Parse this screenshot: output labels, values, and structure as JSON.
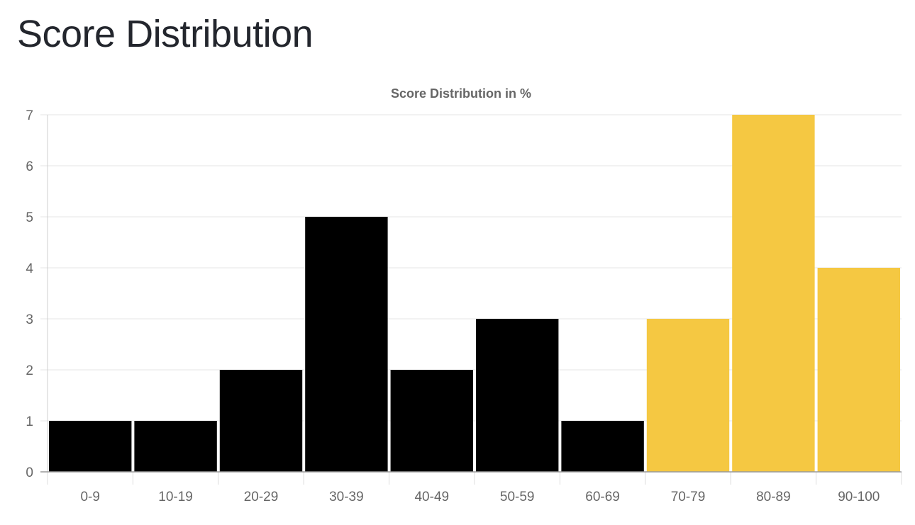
{
  "page": {
    "title": "Score Distribution"
  },
  "chart_data": {
    "type": "bar",
    "title": "Score Distribution in %",
    "xlabel": "",
    "ylabel": "",
    "categories": [
      "0-9",
      "10-19",
      "20-29",
      "30-39",
      "40-49",
      "50-59",
      "60-69",
      "70-79",
      "80-89",
      "90-100"
    ],
    "values": [
      1,
      1,
      2,
      5,
      2,
      3,
      1,
      3,
      7,
      4
    ],
    "bar_colors": [
      "#000000",
      "#000000",
      "#000000",
      "#000000",
      "#000000",
      "#000000",
      "#000000",
      "#f5c842",
      "#f5c842",
      "#f5c842"
    ],
    "ylim": [
      0,
      7
    ],
    "yticks": [
      0,
      1,
      2,
      3,
      4,
      5,
      6,
      7
    ],
    "grid": true,
    "legend": "none"
  }
}
